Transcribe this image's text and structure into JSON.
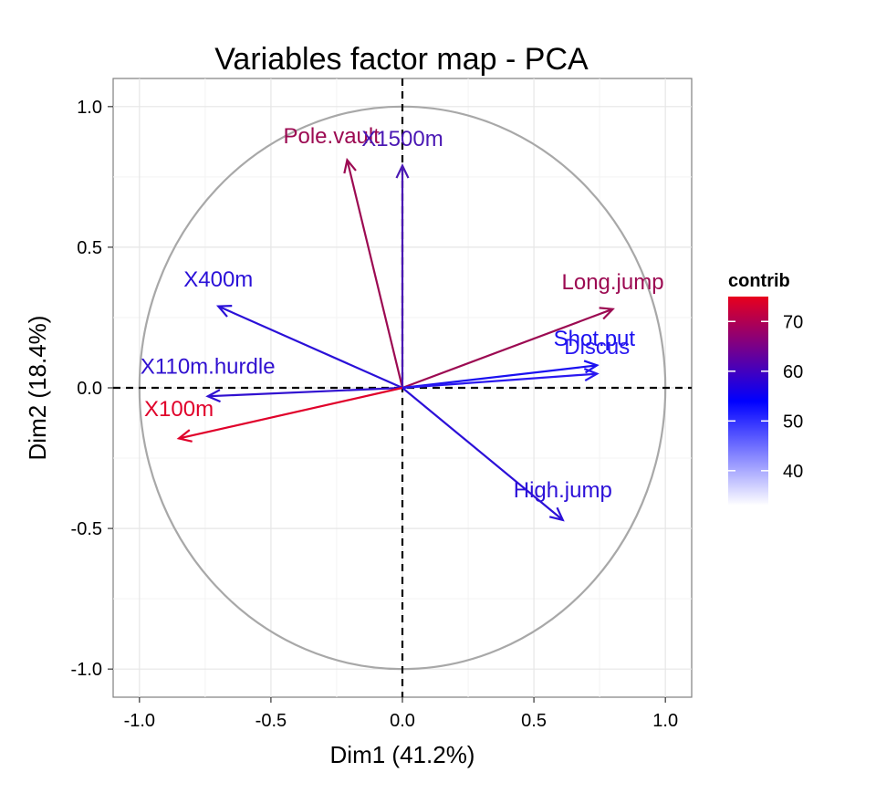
{
  "chart_data": {
    "type": "biplot",
    "title": "Variables factor map - PCA",
    "xlabel": "Dim1 (41.2%)",
    "ylabel": "Dim2 (18.4%)",
    "xlim": [
      -1.1,
      1.1
    ],
    "ylim": [
      -1.1,
      1.1
    ],
    "x_ticks": [
      -1.0,
      -0.5,
      0.0,
      0.5,
      1.0
    ],
    "y_ticks": [
      1.0,
      0.5,
      0.0,
      -0.5,
      -1.0
    ],
    "x_tick_labels": [
      "-1.0",
      "-0.5",
      "0.0",
      "0.5",
      "1.0"
    ],
    "y_tick_labels": [
      "1.0",
      "0.5",
      "0.0",
      "-0.5",
      "-1.0"
    ],
    "grid": true,
    "correlation_circle": true,
    "color_scale": {
      "name": "contrib",
      "min": 33,
      "max": 75,
      "ticks": [
        40,
        50,
        60,
        70
      ],
      "tick_labels": [
        "40",
        "50",
        "60",
        "70"
      ],
      "colors": {
        "low": "#ffffff",
        "mid": "#0000ff",
        "high": "#e8001c"
      }
    },
    "series": [
      {
        "name": "Pole.vault",
        "x": -0.21,
        "y": 0.81,
        "contrib": 70,
        "color": "#9c0a52",
        "label_x": -0.27,
        "label_y": 0.87,
        "arrow_color": "#9c0a52"
      },
      {
        "name": "X1500m",
        "x": 0.0,
        "y": 0.79,
        "contrib": 58,
        "color": "#4a18b4",
        "label_x": 0.0,
        "label_y": 0.86,
        "arrow_color": "#4a18b4"
      },
      {
        "name": "X400m",
        "x": -0.7,
        "y": 0.29,
        "contrib": 52,
        "color": "#2a10d8",
        "label_x": -0.7,
        "label_y": 0.36,
        "arrow_color": "#2a10d8"
      },
      {
        "name": "Long.jump",
        "x": 0.8,
        "y": 0.28,
        "contrib": 70,
        "color": "#9c0a52",
        "label_x": 0.8,
        "label_y": 0.35,
        "arrow_color": "#9c0a52"
      },
      {
        "name": "Shot.put",
        "x": 0.74,
        "y": 0.08,
        "contrib": 48,
        "color": "#1a10f0",
        "label_x": 0.73,
        "label_y": 0.15,
        "arrow_color": "#1a10f0"
      },
      {
        "name": "Discus",
        "x": 0.74,
        "y": 0.05,
        "contrib": 49,
        "color": "#2a18f0",
        "label_x": 0.74,
        "label_y": 0.12,
        "arrow_color": "#2a18f0"
      },
      {
        "name": "X110m.hurdle",
        "x": -0.74,
        "y": -0.03,
        "contrib": 53,
        "color": "#3010d0",
        "label_x": -0.74,
        "label_y": 0.05,
        "arrow_color": "#3010d0"
      },
      {
        "name": "X100m",
        "x": -0.85,
        "y": -0.18,
        "contrib": 75,
        "color": "#e0002a",
        "label_x": -0.85,
        "label_y": -0.1,
        "arrow_color": "#e0002a"
      },
      {
        "name": "High.jump",
        "x": 0.61,
        "y": -0.47,
        "contrib": 52,
        "color": "#2c10d8",
        "label_x": 0.61,
        "label_y": -0.39,
        "arrow_color": "#2c10d8"
      }
    ]
  }
}
